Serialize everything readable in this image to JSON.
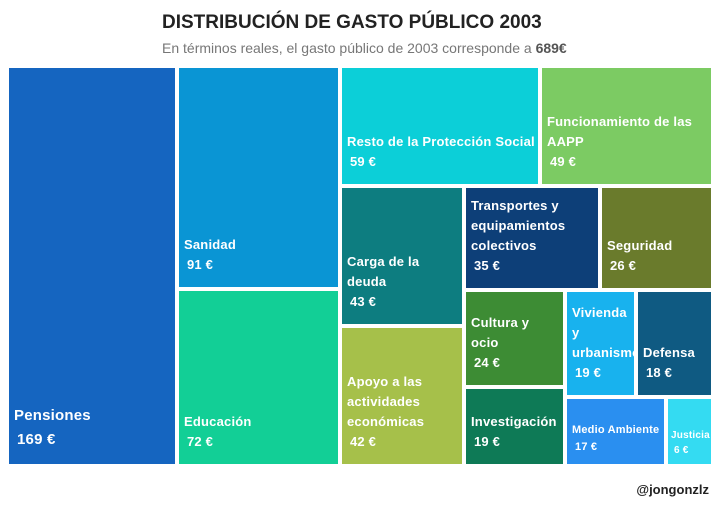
{
  "title": "DISTRIBUCIÓN DE GASTO PÚBLICO 2003",
  "subtitle_prefix": "En términos reales, el gasto público de 2003 corresponde a ",
  "subtitle_total": "689€",
  "credit": "@jongonzlz",
  "chart_data": {
    "type": "treemap",
    "unit": "€",
    "total": 689,
    "title": "DISTRIBUCIÓN DE GASTO PÚBLICO 2003",
    "items": [
      {
        "name": "Pensiones",
        "value": 169,
        "display": "169 €",
        "color": "#1565c0"
      },
      {
        "name": "Sanidad",
        "value": 91,
        "display": "91 €",
        "color": "#0a95d4"
      },
      {
        "name": "Educación",
        "value": 72,
        "display": "72 €",
        "color": "#12cf96"
      },
      {
        "name": "Resto de la Protección Social",
        "value": 59,
        "display": "59 €",
        "color": "#0ccfd8"
      },
      {
        "name": "Funcionamiento de las AAPP",
        "value": 49,
        "display": "49 €",
        "color": "#7ccb63"
      },
      {
        "name": "Carga de la deuda",
        "value": 43,
        "display": "43 €",
        "color": "#0d7d80"
      },
      {
        "name": "Apoyo a las actividades económicas",
        "value": 42,
        "display": "42 €",
        "color": "#a6c04a"
      },
      {
        "name": "Transportes y equipamientos colectivos",
        "value": 35,
        "display": "35 €",
        "color": "#0d3f78"
      },
      {
        "name": "Seguridad",
        "value": 26,
        "display": "26 €",
        "color": "#6a7b2c"
      },
      {
        "name": "Cultura y ocio",
        "value": 24,
        "display": "24 €",
        "color": "#3d8c34"
      },
      {
        "name": "Vivienda y urbanismo",
        "value": 19,
        "display": "19 €",
        "color": "#18b2ee"
      },
      {
        "name": "Defensa",
        "value": 18,
        "display": "18 €",
        "color": "#0f5a82"
      },
      {
        "name": "Investigación",
        "value": 19,
        "display": "19 €",
        "color": "#0e7a56"
      },
      {
        "name": "Medio Ambiente",
        "value": 17,
        "display": "17 €",
        "color": "#2a8ff0"
      },
      {
        "name": "Justicia",
        "value": 6,
        "display": "6 €",
        "color": "#34dbf2"
      }
    ]
  }
}
